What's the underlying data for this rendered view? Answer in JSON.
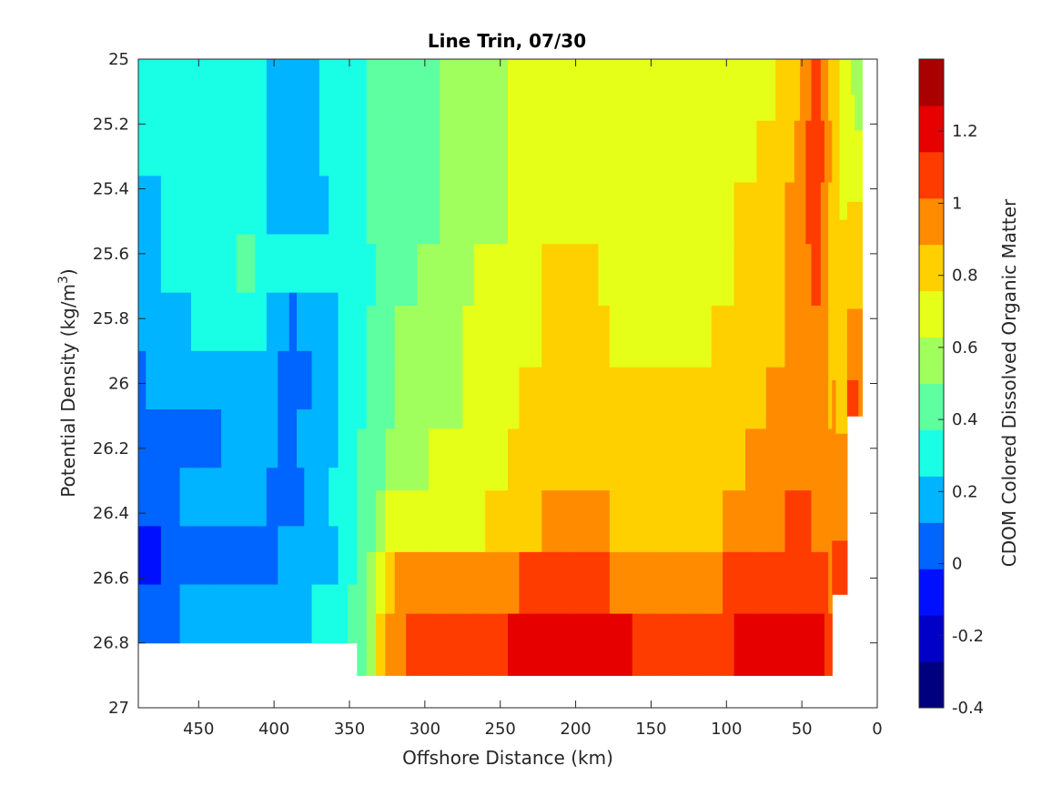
{
  "chart_data": {
    "type": "heatmap",
    "title": "Line Trin, 07/30",
    "xlabel": "Offshore Distance (km)",
    "ylabel": "Potential Density (kg/m",
    "ylabel_sup": "3",
    "ylabel_tail": ")",
    "colorbar_label": "CDOM Colored Dissolved Organic Matter",
    "xlim": [
      490,
      0
    ],
    "ylim": [
      25,
      27
    ],
    "x_reversed": true,
    "y_reversed": true,
    "x_ticks": [
      450,
      400,
      350,
      300,
      250,
      200,
      150,
      100,
      50,
      0
    ],
    "y_ticks": [
      25,
      25.2,
      25.4,
      25.6,
      25.8,
      26,
      26.2,
      26.4,
      26.6,
      26.8,
      27
    ],
    "y_tick_labels": [
      "25",
      "25.2",
      "25.4",
      "25.6",
      "25.8",
      "26",
      "26.2",
      "26.4",
      "26.6",
      "26.8",
      "27"
    ],
    "colorbar_range": [
      -0.4,
      1.4
    ],
    "colorbar_ticks": [
      -0.4,
      -0.2,
      0,
      0.2,
      0.4,
      0.6,
      0.8,
      1,
      1.2
    ],
    "colorbar_colors": [
      "#00007f",
      "#0000c8",
      "#0010ff",
      "#0064ff",
      "#00b4ff",
      "#18ffe6",
      "#5dffa1",
      "#a1ff5d",
      "#e6ff18",
      "#ffd000",
      "#ff8c00",
      "#ff3c00",
      "#e60000",
      "#aa0000"
    ],
    "columns": [
      {
        "x": 490,
        "vals": [
          0.25,
          0.25,
          0.2,
          0.2,
          0.15,
          0.1,
          0.0,
          0.05,
          -0.1,
          0.05
        ],
        "bottom": 26.8
      },
      {
        "x": 470,
        "vals": [
          0.25,
          0.25,
          0.25,
          0.25,
          0.2,
          0.15,
          0.05,
          0.1,
          0.0,
          0.1
        ],
        "bottom": 26.8
      },
      {
        "x": 440,
        "vals": [
          0.3,
          0.3,
          0.25,
          0.3,
          0.3,
          0.15,
          0.1,
          0.15,
          0.1,
          0.2
        ],
        "bottom": 26.8
      },
      {
        "x": 420,
        "vals": [
          0.35,
          0.3,
          0.3,
          0.4,
          0.35,
          0.25,
          0.2,
          0.2,
          0.05,
          0.15
        ],
        "bottom": 26.8
      },
      {
        "x": 390,
        "vals": [
          0.1,
          0.15,
          0.2,
          0.25,
          0.1,
          0.05,
          0.1,
          0.0,
          0.15,
          0.2
        ],
        "bottom": 26.8
      },
      {
        "x": 370,
        "vals": [
          0.25,
          0.25,
          0.2,
          0.25,
          0.15,
          0.15,
          0.15,
          0.2,
          0.15,
          0.25
        ],
        "bottom": 26.8
      },
      {
        "x": 345,
        "vals": [
          0.35,
          0.35,
          0.35,
          0.3,
          0.3,
          0.3,
          0.35,
          0.35,
          0.35,
          0.4
        ],
        "bottom": 26.9
      },
      {
        "x": 320,
        "vals": [
          0.45,
          0.45,
          0.45,
          0.45,
          0.5,
          0.5,
          0.55,
          0.7,
          0.95,
          1.0
        ],
        "bottom": 26.9
      },
      {
        "x": 290,
        "vals": [
          0.5,
          0.5,
          0.5,
          0.55,
          0.55,
          0.6,
          0.65,
          0.75,
          0.9,
          1.05
        ],
        "bottom": 26.9
      },
      {
        "x": 260,
        "vals": [
          0.6,
          0.6,
          0.55,
          0.65,
          0.7,
          0.65,
          0.7,
          0.75,
          0.95,
          1.1
        ],
        "bottom": 26.9
      },
      {
        "x": 230,
        "vals": [
          0.65,
          0.65,
          0.7,
          0.75,
          0.75,
          0.8,
          0.8,
          0.85,
          1.05,
          1.2
        ],
        "bottom": 26.9
      },
      {
        "x": 200,
        "vals": [
          0.65,
          0.65,
          0.75,
          0.8,
          0.8,
          0.85,
          0.85,
          0.95,
          1.1,
          1.25
        ],
        "bottom": 26.9
      },
      {
        "x": 170,
        "vals": [
          0.65,
          0.65,
          0.7,
          0.7,
          0.75,
          0.8,
          0.8,
          0.85,
          1.0,
          1.15
        ],
        "bottom": 26.9
      },
      {
        "x": 140,
        "vals": [
          0.65,
          0.65,
          0.7,
          0.75,
          0.75,
          0.85,
          0.8,
          0.85,
          1.0,
          1.1
        ],
        "bottom": 26.9
      },
      {
        "x": 110,
        "vals": [
          0.65,
          0.65,
          0.7,
          0.7,
          0.75,
          0.8,
          0.8,
          0.85,
          1.0,
          1.1
        ],
        "bottom": 26.9
      },
      {
        "x": 80,
        "vals": [
          0.7,
          0.75,
          0.8,
          0.8,
          0.85,
          0.85,
          0.9,
          0.95,
          1.05,
          1.2
        ],
        "bottom": 26.9
      },
      {
        "x": 55,
        "vals": [
          0.85,
          0.9,
          0.9,
          0.9,
          0.9,
          0.95,
          1.0,
          1.05,
          1.1,
          1.2
        ],
        "bottom": 26.9
      },
      {
        "x": 40,
        "vals": [
          1.05,
          1.15,
          1.1,
          1.05,
          1.0,
          0.95,
          1.0,
          1.0,
          1.1,
          1.2
        ],
        "bottom": 26.9
      },
      {
        "x": 30,
        "vals": [
          0.85,
          0.85,
          0.85,
          0.85,
          0.85,
          0.85,
          0.9,
          0.95,
          1.0,
          1.1
        ],
        "bottom": 26.9
      },
      {
        "x": 20,
        "vals": [
          0.65,
          0.65,
          0.7,
          0.75,
          0.8,
          0.8,
          0.85,
          0.95,
          1.0,
          1.05
        ],
        "bottom": 26.65
      },
      {
        "x": 10,
        "vals": [
          0.55,
          0.6,
          0.65,
          0.75,
          0.8,
          0.8,
          0.85,
          0.9,
          0.95,
          1.0
        ],
        "bottom": 26.1
      }
    ]
  }
}
